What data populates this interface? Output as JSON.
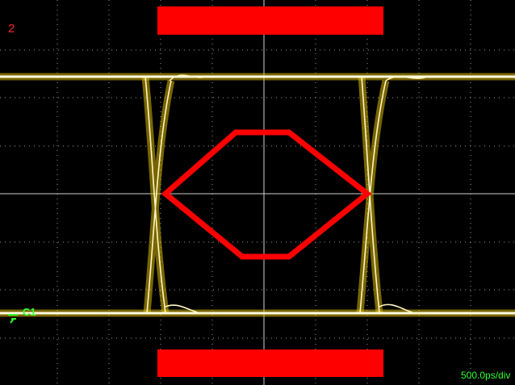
{
  "screen": {
    "channel_marker": "2",
    "channel_label": "C1",
    "timebase": "500.0ps/div"
  }
}
